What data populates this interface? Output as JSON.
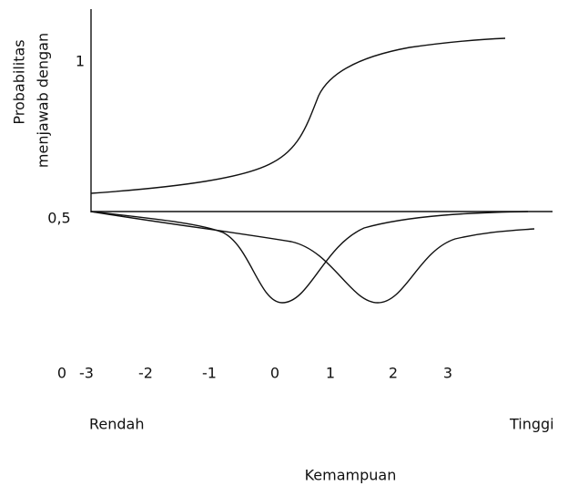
{
  "y_axis": {
    "label_lines": [
      "Probabilitas",
      "menjawab dengan"
    ],
    "ticks": [
      "1",
      "0,5"
    ]
  },
  "x_axis": {
    "ticks": [
      "0",
      "-3",
      "-2",
      "-1",
      "0",
      "1",
      "2",
      "3"
    ],
    "low_label": "Rendah",
    "high_label": "Tinggi",
    "title": "Kemampuan"
  }
}
